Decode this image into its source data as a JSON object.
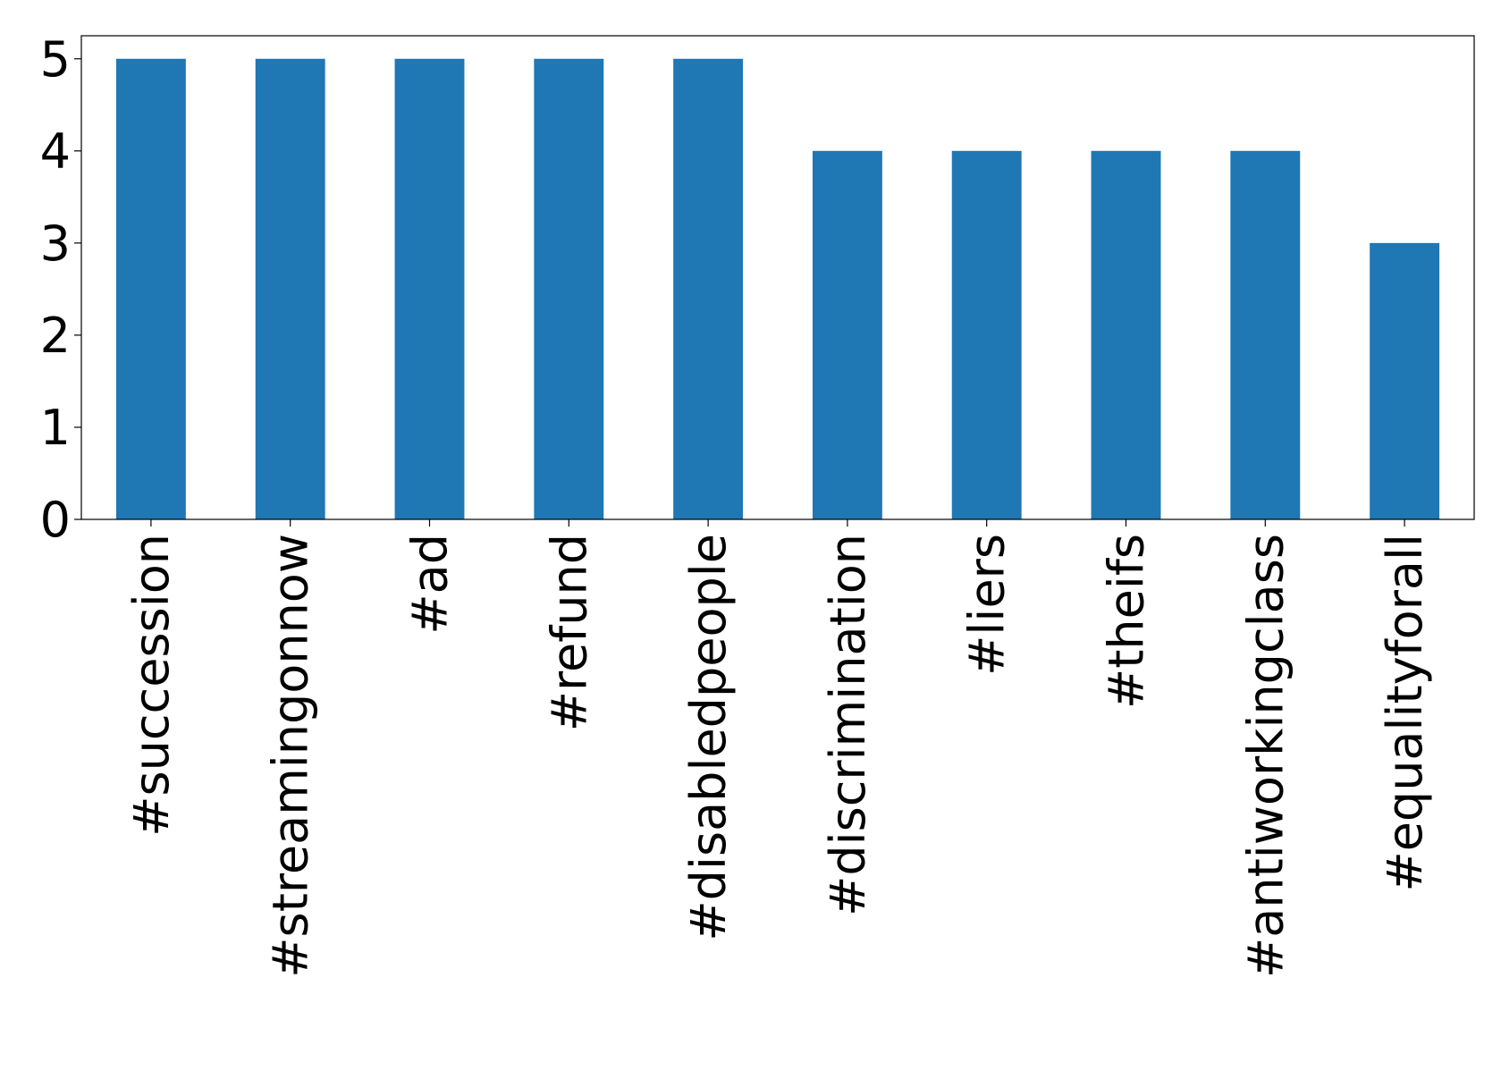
{
  "chart_data": {
    "type": "bar",
    "categories": [
      "#succession",
      "#streamingonnow",
      "#ad",
      "#refund",
      "#disabledpeople",
      "#discrimination",
      "#liers",
      "#theifs",
      "#antiworkingclass",
      "#equalityforall"
    ],
    "values": [
      5,
      5,
      5,
      5,
      5,
      4,
      4,
      4,
      4,
      3
    ],
    "color": "#1f77b4",
    "ylim": [
      0,
      5.25
    ],
    "yticks": [
      0,
      1,
      2,
      3,
      4,
      5
    ],
    "grid": false
  }
}
